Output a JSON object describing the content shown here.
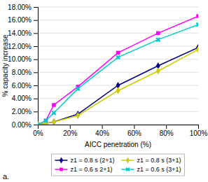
{
  "chart_data": {
    "type": "line",
    "x": [
      0.0,
      0.05,
      0.1,
      0.25,
      0.5,
      0.75,
      1.0
    ],
    "series": [
      {
        "name": "z1 = 0.8 s (2+1)",
        "color": "#00007F",
        "marker": "diamond",
        "line_style": "solid",
        "values": [
          0.0,
          0.002,
          0.004,
          0.016,
          0.06,
          0.09,
          0.118
        ]
      },
      {
        "name": "z1 = 0.6 s 2+1)",
        "color": "#FF00FF",
        "marker": "square",
        "line_style": "solid",
        "values": [
          0.0,
          0.006,
          0.03,
          0.058,
          0.11,
          0.14,
          0.166
        ]
      },
      {
        "name": "z1 = 0.8 s (3+1)",
        "color": "#CCCC00",
        "marker": "diamond",
        "line_style": "solid",
        "values": [
          0.0,
          0.002,
          0.004,
          0.014,
          0.052,
          0.082,
          0.115
        ]
      },
      {
        "name": "z1 = 0.6 s (3+1)",
        "color": "#00CCCC",
        "marker": "x",
        "line_style": "solid",
        "values": [
          0.0,
          0.006,
          0.018,
          0.055,
          0.103,
          0.13,
          0.153
        ]
      }
    ],
    "xlabel": "AICC penetration (%)",
    "ylabel": "% capacity increase",
    "annotation": "a.",
    "xlim": [
      0.0,
      1.0
    ],
    "ylim": [
      0.0,
      0.18
    ],
    "xticks": [
      {
        "value": 0.0,
        "label": "0%"
      },
      {
        "value": 0.2,
        "label": "20%"
      },
      {
        "value": 0.4,
        "label": "40%"
      },
      {
        "value": 0.6,
        "label": "60%"
      },
      {
        "value": 0.8,
        "label": "80%"
      },
      {
        "value": 1.0,
        "label": "100%"
      }
    ],
    "yticks": [
      {
        "value": 0.0,
        "label": "0.00%"
      },
      {
        "value": 0.02,
        "label": "2.00%"
      },
      {
        "value": 0.04,
        "label": "4.00%"
      },
      {
        "value": 0.06,
        "label": "6.00%"
      },
      {
        "value": 0.08,
        "label": "8.00%"
      },
      {
        "value": 0.1,
        "label": "10.00%"
      },
      {
        "value": 0.12,
        "label": "12.00%"
      },
      {
        "value": 0.14,
        "label": "14.00%"
      },
      {
        "value": 0.16,
        "label": "16.00%"
      },
      {
        "value": 0.18,
        "label": "18.00%"
      }
    ],
    "grid": "y",
    "legend": "bottom"
  }
}
